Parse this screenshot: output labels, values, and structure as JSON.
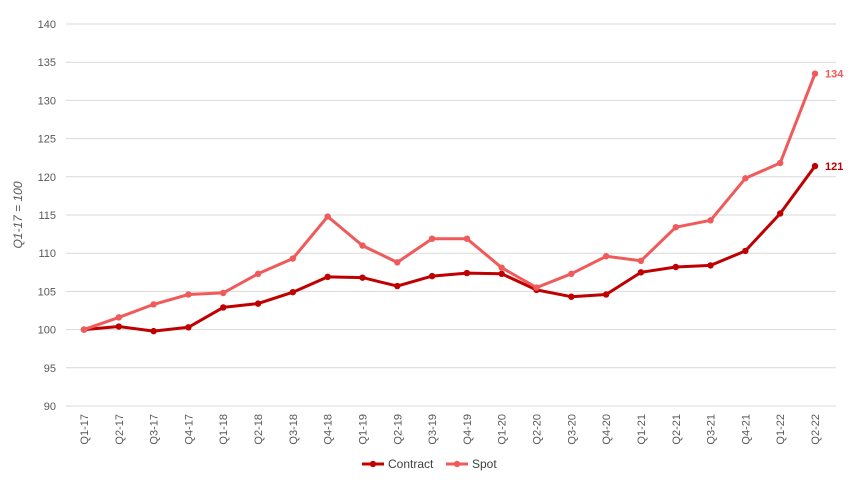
{
  "chart_data": {
    "type": "line",
    "title": "",
    "xlabel": "",
    "ylabel": "Q1-17 = 100",
    "ylim": [
      90,
      140
    ],
    "yticks": [
      90,
      95,
      100,
      105,
      110,
      115,
      120,
      125,
      130,
      135,
      140
    ],
    "grid": true,
    "legend": "bottom",
    "categories": [
      "Q1-17",
      "Q2-17",
      "Q3-17",
      "Q4-17",
      "Q1-18",
      "Q2-18",
      "Q3-18",
      "Q4-18",
      "Q1-19",
      "Q2-19",
      "Q3-19",
      "Q4-19",
      "Q1-20",
      "Q2-20",
      "Q3-20",
      "Q4-20",
      "Q1-21",
      "Q2-21",
      "Q3-21",
      "Q4-21",
      "Q1-22",
      "Q2-22"
    ],
    "series": [
      {
        "name": "Contract",
        "color": "#c00000",
        "values": [
          100,
          100.4,
          99.8,
          100.3,
          102.9,
          103.4,
          104.9,
          106.9,
          106.8,
          105.7,
          107.0,
          107.4,
          107.3,
          105.2,
          104.3,
          104.6,
          107.5,
          108.2,
          108.4,
          110.3,
          115.2,
          121.4
        ],
        "end_label": "121"
      },
      {
        "name": "Spot",
        "color": "#f05a5a",
        "values": [
          100,
          101.6,
          103.3,
          104.6,
          104.8,
          107.3,
          109.3,
          114.8,
          111.0,
          108.8,
          111.9,
          111.9,
          108.1,
          105.5,
          107.3,
          109.6,
          109.0,
          113.4,
          114.3,
          119.8,
          121.8,
          133.5
        ],
        "end_label": "134"
      }
    ]
  }
}
